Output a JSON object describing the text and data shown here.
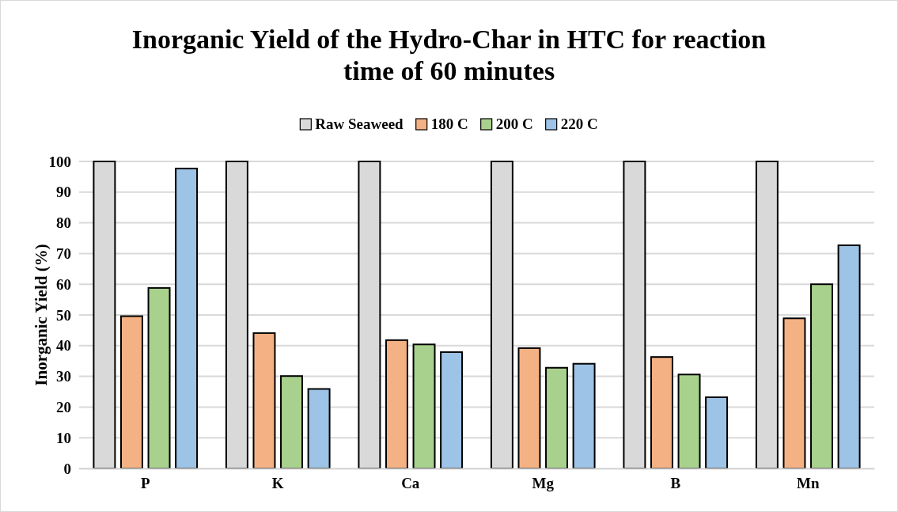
{
  "chart_data": {
    "type": "bar",
    "title": "Inorganic Yield of the Hydro-Char in HTC for reaction time of 60 minutes",
    "ylabel": "Inorganic Yield (%)",
    "categories": [
      "P",
      "K",
      "Ca",
      "Mg",
      "B",
      "Mn"
    ],
    "series": [
      {
        "name": "Raw Seaweed",
        "color": "#d9d9d9",
        "values": [
          100,
          100,
          100,
          100,
          100,
          100
        ]
      },
      {
        "name": "180 C",
        "color": "#f4b183",
        "values": [
          49.6,
          44.1,
          41.8,
          39.2,
          36.3,
          48.9
        ]
      },
      {
        "name": "200 C",
        "color": "#a9d18e",
        "values": [
          58.8,
          30.1,
          40.4,
          32.8,
          30.6,
          60.0
        ]
      },
      {
        "name": "220 C",
        "color": "#9dc3e6",
        "values": [
          97.7,
          25.9,
          37.9,
          34.1,
          23.2,
          72.7
        ]
      }
    ],
    "ylim": [
      0,
      100
    ],
    "yticks": [
      0,
      10,
      20,
      30,
      40,
      50,
      60,
      70,
      80,
      90,
      100
    ],
    "grid": "y",
    "legend": "top"
  }
}
